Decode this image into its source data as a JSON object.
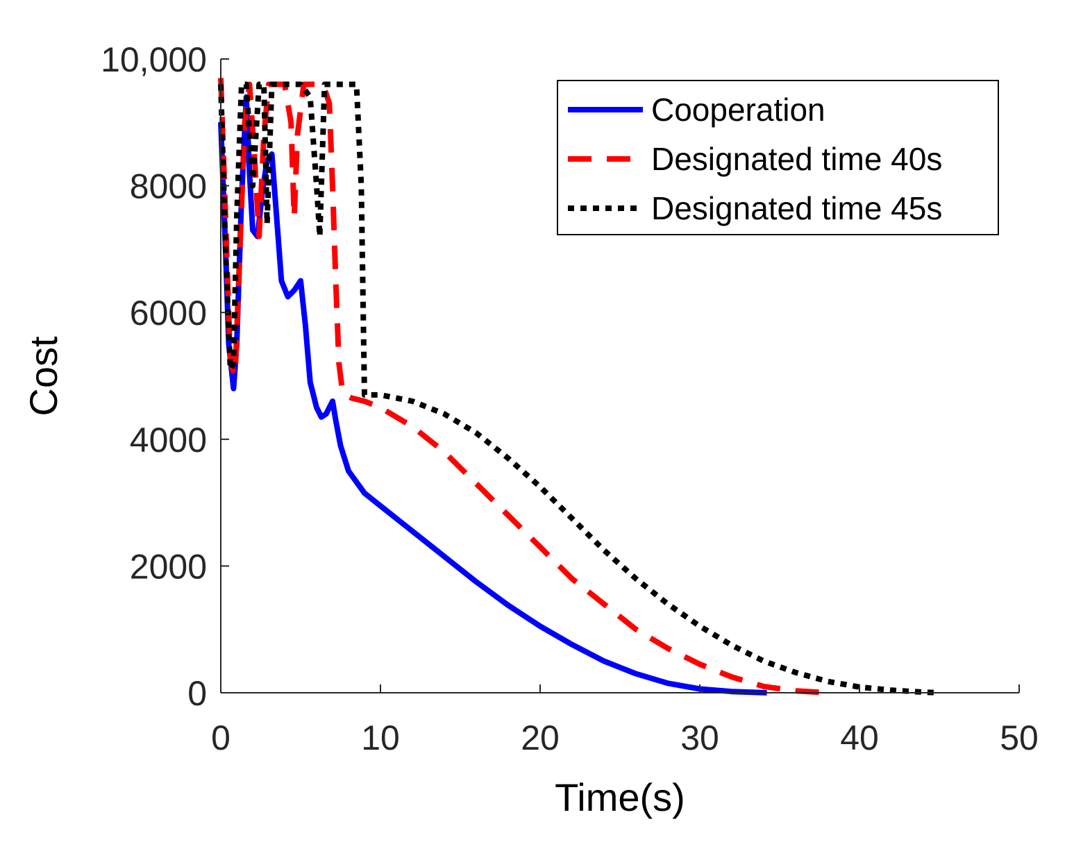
{
  "chart_data": {
    "type": "line",
    "title": "",
    "xlabel": "Time(s)",
    "ylabel": "Cost",
    "xlim": [
      0,
      50
    ],
    "ylim": [
      0,
      10000
    ],
    "xticks": [
      0,
      10,
      20,
      30,
      40,
      50
    ],
    "xtick_labels": [
      "0",
      "10",
      "20",
      "30",
      "40",
      "50"
    ],
    "yticks": [
      0,
      2000,
      4000,
      6000,
      8000,
      10000
    ],
    "ytick_labels": [
      "0",
      "2000",
      "4000",
      "6000",
      "8000",
      "10,000"
    ],
    "grid": false,
    "legend_position": "top-right",
    "series": [
      {
        "name": "Cooperation",
        "color": "#0000ff",
        "style": "solid",
        "x": [
          0,
          0.3,
          0.5,
          0.8,
          1.0,
          1.3,
          1.6,
          1.8,
          2.0,
          2.3,
          2.6,
          2.9,
          3.2,
          3.5,
          3.8,
          4.2,
          4.6,
          5.0,
          5.3,
          5.6,
          6.0,
          6.3,
          6.6,
          7.0,
          7.2,
          7.5,
          8.0,
          9.0,
          10,
          12,
          14,
          16,
          18,
          20,
          22,
          24,
          26,
          28,
          30,
          32,
          34.2
        ],
        "y": [
          9000,
          7000,
          5500,
          4800,
          5500,
          7800,
          9400,
          8200,
          7300,
          7200,
          7900,
          8400,
          8500,
          7500,
          6500,
          6250,
          6350,
          6500,
          5800,
          4900,
          4500,
          4350,
          4400,
          4600,
          4300,
          3900,
          3500,
          3150,
          2950,
          2550,
          2150,
          1750,
          1380,
          1050,
          760,
          500,
          300,
          150,
          60,
          20,
          0
        ]
      },
      {
        "name": "Designated time 40s",
        "color": "#ff0000",
        "style": "dashed",
        "x": [
          0,
          0.3,
          0.6,
          0.9,
          1.2,
          1.5,
          1.8,
          2.1,
          2.4,
          2.7,
          3.0,
          3.3,
          3.6,
          4.0,
          4.4,
          4.6,
          4.8,
          5.2,
          5.6,
          6.0,
          6.4,
          6.8,
          7.0,
          7.2,
          7.4,
          7.6,
          7.8,
          8.2,
          9,
          10,
          12,
          14,
          16,
          18,
          20,
          22,
          24,
          26,
          28,
          30,
          32,
          34,
          36,
          38
        ],
        "y": [
          9700,
          7500,
          5200,
          5000,
          7000,
          9000,
          9600,
          8500,
          7200,
          8800,
          9600,
          9600,
          9600,
          9600,
          9000,
          7500,
          8800,
          9600,
          9600,
          9600,
          9600,
          9300,
          8000,
          6500,
          5200,
          4800,
          4700,
          4650,
          4600,
          4500,
          4200,
          3800,
          3300,
          2800,
          2300,
          1800,
          1400,
          1000,
          700,
          450,
          250,
          100,
          30,
          0
        ]
      },
      {
        "name": "Designated time 45s",
        "color": "#000000",
        "style": "dotted",
        "x": [
          0,
          0.3,
          0.6,
          0.8,
          1.0,
          1.3,
          1.6,
          2.0,
          2.4,
          2.7,
          2.9,
          3.2,
          3.6,
          4.2,
          5.0,
          5.6,
          6.0,
          6.2,
          6.5,
          7.0,
          7.5,
          8.0,
          8.5,
          8.8,
          9.0,
          10,
          12,
          14,
          16,
          18,
          20,
          22,
          24,
          26,
          28,
          30,
          32,
          34,
          36,
          38,
          40,
          42,
          44,
          45
        ],
        "y": [
          9600,
          7000,
          5100,
          5200,
          7500,
          9600,
          9600,
          8000,
          9600,
          9600,
          7400,
          9600,
          9600,
          9600,
          9600,
          9400,
          8000,
          7200,
          9600,
          9600,
          9600,
          9600,
          9600,
          8000,
          4700,
          4700,
          4600,
          4400,
          4100,
          3700,
          3250,
          2750,
          2250,
          1800,
          1400,
          1050,
          750,
          500,
          320,
          180,
          90,
          40,
          10,
          0
        ]
      }
    ]
  }
}
